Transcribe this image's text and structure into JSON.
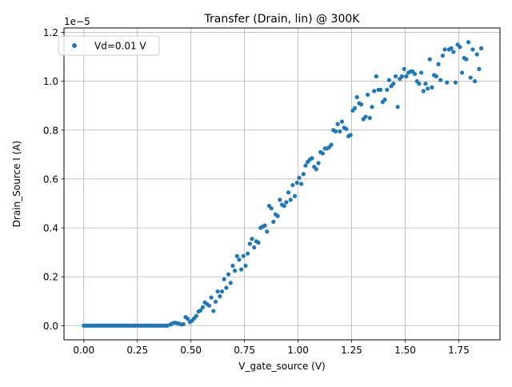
{
  "chart_data": {
    "type": "scatter",
    "title": "Transfer (Drain, lin) @ 300K",
    "xlabel": "V_gate_source (V)",
    "ylabel": "Drain_Source I (A)",
    "y_offset_label": "1e−5",
    "y_scale_exponent": -5,
    "xlim": [
      -0.0925,
      1.9425
    ],
    "ylim": [
      -0.058,
      1.218
    ],
    "x_ticks": [
      0.0,
      0.25,
      0.5,
      0.75,
      1.0,
      1.25,
      1.5,
      1.75
    ],
    "x_tick_labels": [
      "0.00",
      "0.25",
      "0.50",
      "0.75",
      "1.00",
      "1.25",
      "1.50",
      "1.75"
    ],
    "y_ticks": [
      0.0,
      0.2,
      0.4,
      0.6,
      0.8,
      1.0,
      1.2
    ],
    "y_tick_labels": [
      "0.0",
      "0.2",
      "0.4",
      "0.6",
      "0.8",
      "1.0",
      "1.2"
    ],
    "grid": true,
    "legend_position": "upper-left",
    "series": [
      {
        "name": "Vd=0.01 V",
        "color": "#1f77b4",
        "points": [
          [
            0.0,
            0.0
          ],
          [
            0.01,
            0.0
          ],
          [
            0.02,
            0.0
          ],
          [
            0.03,
            0.0
          ],
          [
            0.04,
            0.0
          ],
          [
            0.05,
            0.0
          ],
          [
            0.06,
            0.0
          ],
          [
            0.07,
            0.0
          ],
          [
            0.08,
            0.0
          ],
          [
            0.09,
            0.0
          ],
          [
            0.1,
            0.0
          ],
          [
            0.11,
            0.0
          ],
          [
            0.12,
            0.0
          ],
          [
            0.13,
            0.0
          ],
          [
            0.14,
            0.0
          ],
          [
            0.15,
            0.0
          ],
          [
            0.16,
            0.0
          ],
          [
            0.17,
            0.0
          ],
          [
            0.18,
            0.0
          ],
          [
            0.19,
            0.0
          ],
          [
            0.2,
            0.0
          ],
          [
            0.21,
            0.0
          ],
          [
            0.22,
            0.0
          ],
          [
            0.23,
            0.0
          ],
          [
            0.24,
            0.0
          ],
          [
            0.25,
            0.0
          ],
          [
            0.26,
            0.0
          ],
          [
            0.27,
            0.0
          ],
          [
            0.28,
            0.0
          ],
          [
            0.29,
            0.0
          ],
          [
            0.3,
            0.0
          ],
          [
            0.31,
            0.0
          ],
          [
            0.32,
            0.0
          ],
          [
            0.33,
            0.0
          ],
          [
            0.34,
            0.0
          ],
          [
            0.35,
            0.0
          ],
          [
            0.36,
            0.0
          ],
          [
            0.37,
            0.0
          ],
          [
            0.38,
            0.0
          ],
          [
            0.39,
            0.0
          ],
          [
            0.405,
            0.005
          ],
          [
            0.415,
            0.01
          ],
          [
            0.425,
            0.012
          ],
          [
            0.435,
            0.01
          ],
          [
            0.445,
            0.008
          ],
          [
            0.455,
            0.005
          ],
          [
            0.465,
            0.006
          ],
          [
            0.475,
            0.035
          ],
          [
            0.485,
            0.028
          ],
          [
            0.495,
            0.015
          ],
          [
            0.505,
            0.02
          ],
          [
            0.515,
            0.03
          ],
          [
            0.525,
            0.04
          ],
          [
            0.535,
            0.058
          ],
          [
            0.545,
            0.062
          ],
          [
            0.555,
            0.075
          ],
          [
            0.565,
            0.095
          ],
          [
            0.575,
            0.088
          ],
          [
            0.585,
            0.082
          ],
          [
            0.595,
            0.115
          ],
          [
            0.605,
            0.06
          ],
          [
            0.615,
            0.098
          ],
          [
            0.625,
            0.14
          ],
          [
            0.635,
            0.12
          ],
          [
            0.645,
            0.14
          ],
          [
            0.655,
            0.19
          ],
          [
            0.665,
            0.155
          ],
          [
            0.675,
            0.21
          ],
          [
            0.685,
            0.175
          ],
          [
            0.695,
            0.245
          ],
          [
            0.705,
            0.225
          ],
          [
            0.715,
            0.285
          ],
          [
            0.725,
            0.27
          ],
          [
            0.735,
            0.23
          ],
          [
            0.745,
            0.285
          ],
          [
            0.755,
            0.245
          ],
          [
            0.765,
            0.295
          ],
          [
            0.775,
            0.335
          ],
          [
            0.785,
            0.355
          ],
          [
            0.795,
            0.32
          ],
          [
            0.805,
            0.345
          ],
          [
            0.815,
            0.34
          ],
          [
            0.825,
            0.4
          ],
          [
            0.835,
            0.405
          ],
          [
            0.845,
            0.41
          ],
          [
            0.855,
            0.385
          ],
          [
            0.865,
            0.49
          ],
          [
            0.875,
            0.48
          ],
          [
            0.885,
            0.425
          ],
          [
            0.895,
            0.455
          ],
          [
            0.905,
            0.448
          ],
          [
            0.915,
            0.515
          ],
          [
            0.925,
            0.495
          ],
          [
            0.935,
            0.49
          ],
          [
            0.945,
            0.505
          ],
          [
            0.955,
            0.545
          ],
          [
            0.965,
            0.515
          ],
          [
            0.975,
            0.575
          ],
          [
            0.985,
            0.53
          ],
          [
            0.995,
            0.585
          ],
          [
            1.005,
            0.605
          ],
          [
            1.015,
            0.58
          ],
          [
            1.025,
            0.62
          ],
          [
            1.035,
            0.655
          ],
          [
            1.045,
            0.67
          ],
          [
            1.055,
            0.68
          ],
          [
            1.065,
            0.685
          ],
          [
            1.075,
            0.65
          ],
          [
            1.085,
            0.64
          ],
          [
            1.095,
            0.665
          ],
          [
            1.105,
            0.71
          ],
          [
            1.115,
            0.705
          ],
          [
            1.125,
            0.725
          ],
          [
            1.135,
            0.725
          ],
          [
            1.145,
            0.73
          ],
          [
            1.155,
            0.74
          ],
          [
            1.165,
            0.8
          ],
          [
            1.175,
            0.795
          ],
          [
            1.185,
            0.825
          ],
          [
            1.195,
            0.795
          ],
          [
            1.205,
            0.835
          ],
          [
            1.215,
            0.81
          ],
          [
            1.225,
            0.805
          ],
          [
            1.235,
            0.775
          ],
          [
            1.245,
            0.78
          ],
          [
            1.255,
            0.88
          ],
          [
            1.265,
            0.89
          ],
          [
            1.275,
            0.935
          ],
          [
            1.285,
            0.91
          ],
          [
            1.295,
            0.905
          ],
          [
            1.305,
            0.845
          ],
          [
            1.315,
            0.855
          ],
          [
            1.325,
            0.945
          ],
          [
            1.335,
            0.85
          ],
          [
            1.345,
            0.895
          ],
          [
            1.355,
            0.96
          ],
          [
            1.365,
            1.02
          ],
          [
            1.375,
            0.965
          ],
          [
            1.385,
            0.965
          ],
          [
            1.395,
            0.915
          ],
          [
            1.405,
            0.925
          ],
          [
            1.415,
            0.965
          ],
          [
            1.425,
            1.005
          ],
          [
            1.435,
            0.98
          ],
          [
            1.445,
            0.99
          ],
          [
            1.455,
            1.02
          ],
          [
            1.465,
            0.895
          ],
          [
            1.475,
            1.01
          ],
          [
            1.485,
            1.02
          ],
          [
            1.495,
            1.05
          ],
          [
            1.505,
            1.02
          ],
          [
            1.515,
            1.035
          ],
          [
            1.525,
            1.04
          ],
          [
            1.535,
            1.04
          ],
          [
            1.545,
            1.03
          ],
          [
            1.555,
            1.0
          ],
          [
            1.565,
            0.99
          ],
          [
            1.575,
            1.035
          ],
          [
            1.585,
            0.96
          ],
          [
            1.595,
            0.99
          ],
          [
            1.605,
            0.97
          ],
          [
            1.615,
            1.09
          ],
          [
            1.625,
            0.975
          ],
          [
            1.635,
            1.025
          ],
          [
            1.645,
            1.02
          ],
          [
            1.655,
            1.07
          ],
          [
            1.665,
            1.005
          ],
          [
            1.675,
            1.105
          ],
          [
            1.685,
            1.13
          ],
          [
            1.695,
            0.995
          ],
          [
            1.705,
            1.13
          ],
          [
            1.715,
            1.135
          ],
          [
            1.725,
            1.12
          ],
          [
            1.735,
            0.995
          ],
          [
            1.745,
            1.15
          ],
          [
            1.755,
            1.14
          ],
          [
            1.765,
            1.035
          ],
          [
            1.775,
            1.095
          ],
          [
            1.785,
            1.09
          ],
          [
            1.795,
            1.16
          ],
          [
            1.805,
            1.015
          ],
          [
            1.815,
            1.13
          ],
          [
            1.825,
            1.0
          ],
          [
            1.835,
            1.11
          ],
          [
            1.845,
            1.05
          ],
          [
            1.855,
            1.135
          ]
        ]
      }
    ]
  }
}
